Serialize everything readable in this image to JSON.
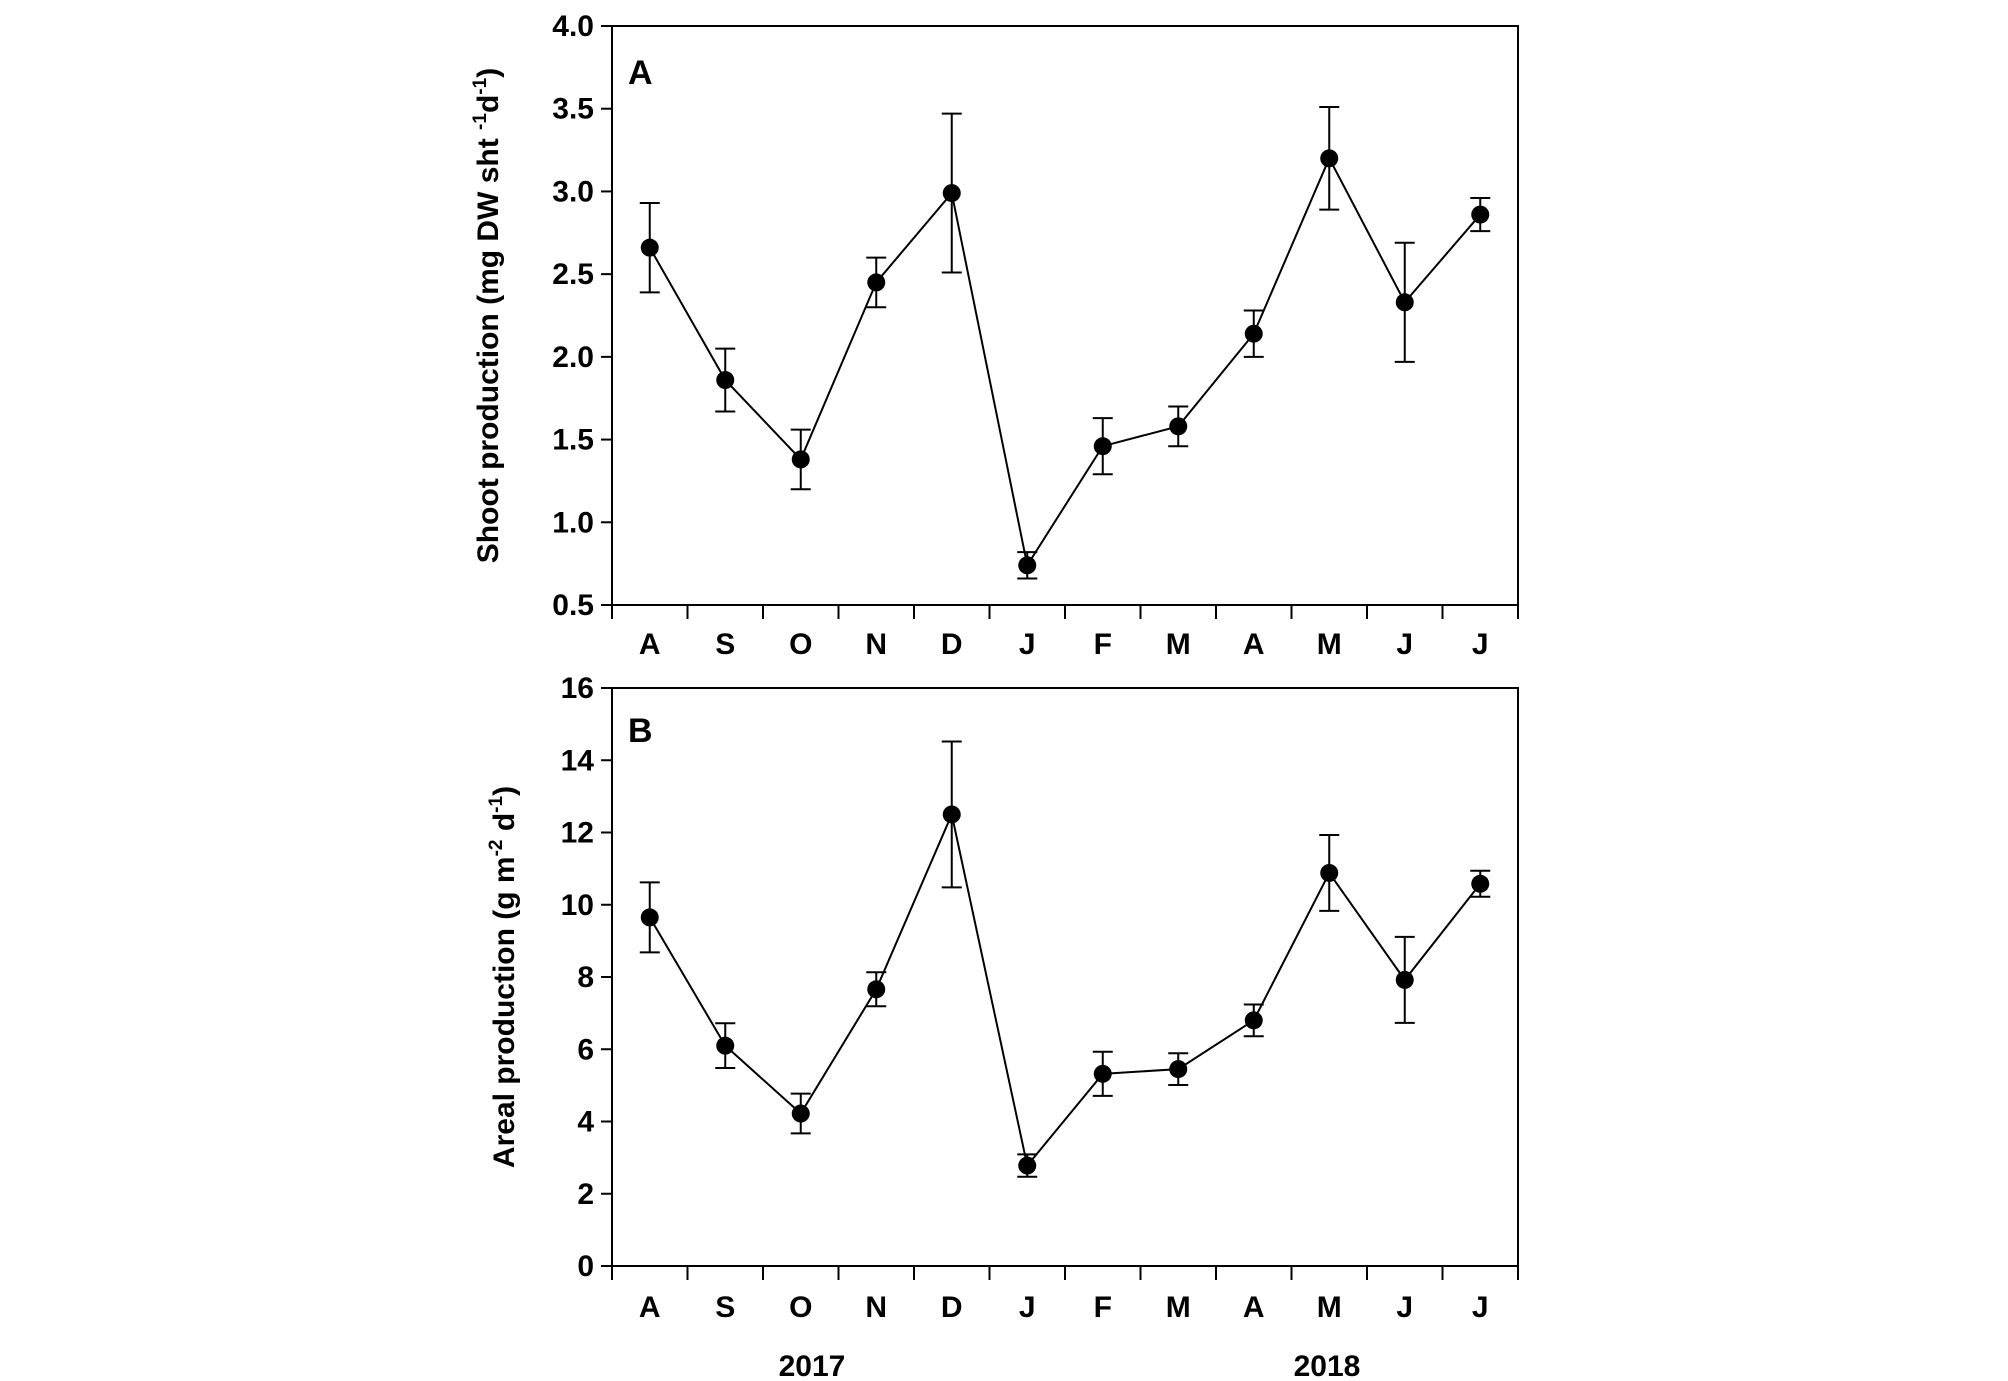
{
  "chart_data": [
    {
      "type": "line",
      "panel_label": "A",
      "ylabel": "Shoot production (mg DW sht -1 d-1)",
      "ylabel_parts": {
        "pre": "Shoot production (mg DW sht ",
        "sup1": "-1",
        "mid": "d",
        "sup2": "-1",
        "post": ")"
      },
      "ylim": [
        0.5,
        4.0
      ],
      "yticks": [
        "0.5",
        "1.0",
        "1.5",
        "2.0",
        "2.5",
        "3.0",
        "3.5",
        "4.0"
      ],
      "categories": [
        "A",
        "S",
        "O",
        "N",
        "D",
        "J",
        "F",
        "M",
        "A",
        "M",
        "J",
        "J"
      ],
      "series": [
        {
          "values": [
            2.66,
            1.86,
            1.38,
            2.45,
            2.99,
            0.74,
            1.46,
            1.58,
            2.14,
            3.2,
            2.33,
            2.86
          ],
          "errors": [
            0.27,
            0.19,
            0.18,
            0.15,
            0.48,
            0.08,
            0.17,
            0.12,
            0.14,
            0.31,
            0.36,
            0.1
          ]
        }
      ],
      "grid": false
    },
    {
      "type": "line",
      "panel_label": "B",
      "ylabel": "Areal production (g m-2 d-1)",
      "ylabel_parts": {
        "pre": "Areal production (g m",
        "sup1": "-2",
        "mid": " d",
        "sup2": "-1",
        "post": ")"
      },
      "ylim": [
        0,
        16
      ],
      "yticks": [
        "0",
        "2",
        "4",
        "6",
        "8",
        "10",
        "12",
        "14",
        "16"
      ],
      "categories": [
        "A",
        "S",
        "O",
        "N",
        "D",
        "J",
        "F",
        "M",
        "A",
        "M",
        "J",
        "J"
      ],
      "series": [
        {
          "values": [
            9.65,
            6.1,
            4.22,
            7.66,
            12.5,
            2.78,
            5.32,
            5.45,
            6.8,
            10.88,
            7.92,
            10.58
          ],
          "errors": [
            0.97,
            0.62,
            0.55,
            0.47,
            2.02,
            0.31,
            0.61,
            0.44,
            0.44,
            1.05,
            1.19,
            0.36
          ]
        }
      ],
      "grid": false
    }
  ],
  "years": [
    "2017",
    "2018"
  ]
}
